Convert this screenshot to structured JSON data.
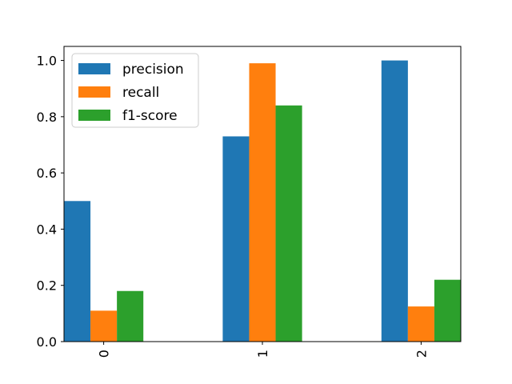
{
  "chart_data": {
    "type": "bar",
    "categories": [
      "0",
      "1",
      "2"
    ],
    "series": [
      {
        "name": "precision",
        "values": [
          0.5,
          0.73,
          1.0
        ],
        "color": "#1f77b4"
      },
      {
        "name": "recall",
        "values": [
          0.11,
          0.99,
          0.125
        ],
        "color": "#ff7f0e"
      },
      {
        "name": "f1-score",
        "values": [
          0.18,
          0.84,
          0.22
        ],
        "color": "#2ca02c"
      }
    ],
    "ylim": [
      0,
      1.05
    ],
    "yticks": [
      0.0,
      0.2,
      0.4,
      0.6,
      0.8,
      1.0
    ],
    "ytick_labels": [
      "0.0",
      "0.2",
      "0.4",
      "0.6",
      "0.8",
      "1.0"
    ],
    "xtick_rotation": "vertical",
    "legend_position": "top-left",
    "grid": false,
    "title": "",
    "xlabel": "",
    "ylabel": ""
  }
}
